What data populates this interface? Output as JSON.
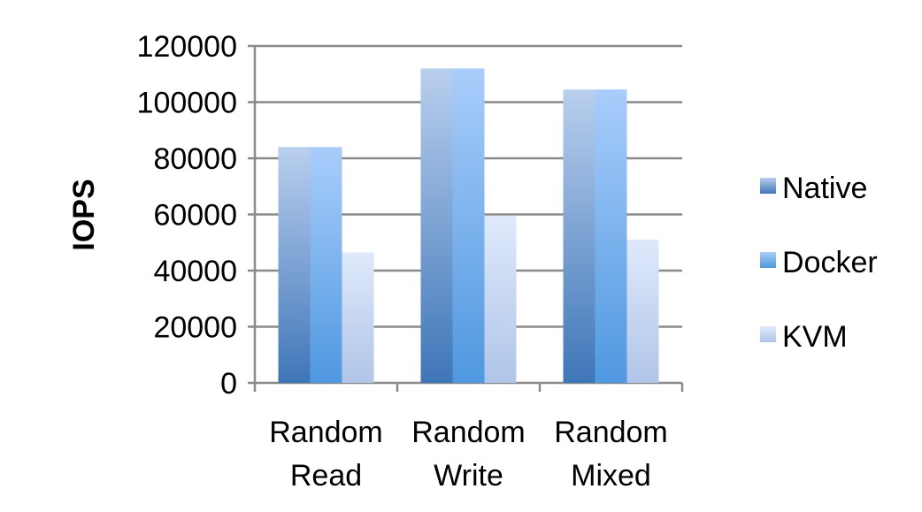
{
  "chart_data": {
    "type": "bar",
    "title": "",
    "xlabel": "",
    "ylabel": "IOPS",
    "ylim": [
      0,
      120000
    ],
    "yticks": [
      "0",
      "20000",
      "40000",
      "60000",
      "80000",
      "100000",
      "120000"
    ],
    "categories": [
      [
        "Random",
        "Read"
      ],
      [
        "Random",
        "Write"
      ],
      [
        "Random",
        "Mixed"
      ]
    ],
    "series": [
      {
        "name": "Native",
        "values": [
          84000,
          112000,
          104500
        ]
      },
      {
        "name": "Docker",
        "values": [
          84000,
          112000,
          104500
        ]
      },
      {
        "name": "KVM",
        "values": [
          46500,
          59500,
          51000
        ]
      }
    ],
    "grid": true,
    "legend_position": "right"
  },
  "colors": {
    "gridline": "#8a8a8a",
    "Native": "#4a7fbf",
    "Docker": "#5a9fe6",
    "KVM": "#b4caec"
  }
}
